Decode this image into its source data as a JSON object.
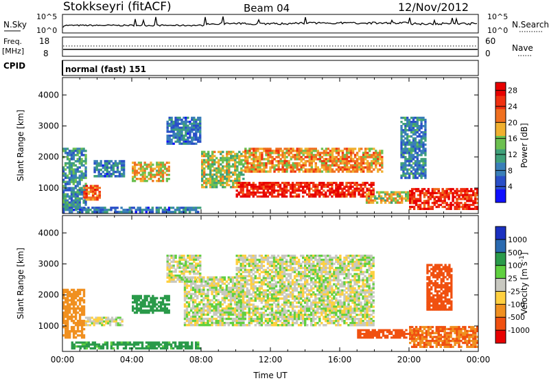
{
  "header": {
    "station": "Stokkseyri (fitACF)",
    "beam": "Beam 04",
    "date": "12/Nov/2012"
  },
  "strip_sky": {
    "left_label": "N.Sky",
    "left_ticks": [
      "10^5",
      "10^0"
    ],
    "right_ticks": [
      "10^5",
      "10^0"
    ],
    "right_label": "N.Search"
  },
  "strip_freq": {
    "left_label_1": "Freq.",
    "left_label_2": "[MHz]",
    "left_ticks": [
      "18",
      "8"
    ],
    "right_ticks": [
      "60",
      "0"
    ],
    "right_label": "Nave"
  },
  "strip_cpid": {
    "label": "CPID",
    "text": "normal (fast) 151"
  },
  "colors": {
    "power": [
      "#1010ff",
      "#2a4fc8",
      "#3a7fb8",
      "#3fa07a",
      "#6cc050",
      "#f0b030",
      "#f07020",
      "#f03010",
      "#e80000"
    ],
    "velocity": [
      "#e80000",
      "#f05010",
      "#f09020",
      "#ffd040",
      "#c8c8c0",
      "#60d040",
      "#2a9a4a",
      "#2a6ab0",
      "#1a30c0"
    ]
  },
  "chart_data": [
    {
      "type": "heatmap",
      "title": "",
      "xlabel": "",
      "ylabel": "Slant Range [km]",
      "x_ticks": [
        "00:00",
        "04:00",
        "08:00",
        "12:00",
        "16:00",
        "20:00",
        "00:00"
      ],
      "x_range_hours": [
        0,
        24
      ],
      "ylim": [
        180,
        4560
      ],
      "y_ticks": [
        1000,
        2000,
        3000,
        4000
      ],
      "colorbar": {
        "label": "Power [dB]",
        "ticks": [
          4,
          8,
          12,
          16,
          20,
          24,
          28
        ],
        "range": [
          0,
          30
        ]
      },
      "regions": [
        {
          "t": [
            0.0,
            1.4
          ],
          "r": [
            300,
            2300
          ],
          "value": 10
        },
        {
          "t": [
            1.2,
            2.2
          ],
          "r": [
            600,
            1100
          ],
          "value": 22
        },
        {
          "t": [
            1.8,
            3.6
          ],
          "r": [
            1350,
            1900
          ],
          "value": 8
        },
        {
          "t": [
            4.0,
            6.2
          ],
          "r": [
            1200,
            1850
          ],
          "value": 18
        },
        {
          "t": [
            6.0,
            8.0
          ],
          "r": [
            2400,
            3300
          ],
          "value": 8
        },
        {
          "t": [
            8.0,
            10.5
          ],
          "r": [
            1000,
            2200
          ],
          "value": 16
        },
        {
          "t": [
            10.0,
            18.0
          ],
          "r": [
            700,
            1200
          ],
          "value": 27
        },
        {
          "t": [
            10.5,
            18.5
          ],
          "r": [
            1500,
            2300
          ],
          "value": 20
        },
        {
          "t": [
            17.5,
            20.0
          ],
          "r": [
            500,
            900
          ],
          "value": 17
        },
        {
          "t": [
            19.5,
            21.0
          ],
          "r": [
            1300,
            3300
          ],
          "value": 9
        },
        {
          "t": [
            20.0,
            24.0
          ],
          "r": [
            300,
            1000
          ],
          "value": 26
        },
        {
          "t": [
            0.0,
            8.0
          ],
          "r": [
            200,
            400
          ],
          "value": 8
        }
      ]
    },
    {
      "type": "heatmap",
      "title": "",
      "xlabel": "Time UT",
      "ylabel": "Slant Range [km]",
      "x_ticks": [
        "00:00",
        "04:00",
        "08:00",
        "12:00",
        "16:00",
        "20:00",
        "00:00"
      ],
      "x_range_hours": [
        0,
        24
      ],
      "ylim": [
        180,
        4560
      ],
      "y_ticks": [
        1000,
        2000,
        3000,
        4000
      ],
      "colorbar": {
        "label": "Velocity [m s^-1]",
        "ticks": [
          1000,
          500,
          100,
          25,
          -25,
          -100,
          -500,
          -1000
        ]
      },
      "regions": [
        {
          "t": [
            0.0,
            1.3
          ],
          "r": [
            600,
            2200
          ],
          "value": -400
        },
        {
          "t": [
            1.3,
            3.5
          ],
          "r": [
            1000,
            1300
          ],
          "value": 0
        },
        {
          "t": [
            0.5,
            8.0
          ],
          "r": [
            250,
            500
          ],
          "value": 150
        },
        {
          "t": [
            4.0,
            6.2
          ],
          "r": [
            1400,
            2000
          ],
          "value": 200
        },
        {
          "t": [
            6.0,
            8.0
          ],
          "r": [
            2400,
            3300
          ],
          "value": 0
        },
        {
          "t": [
            7.0,
            10.5
          ],
          "r": [
            1000,
            2600
          ],
          "value": 0
        },
        {
          "t": [
            10.0,
            18.0
          ],
          "r": [
            1000,
            3300
          ],
          "value": 0
        },
        {
          "t": [
            17.0,
            20.5
          ],
          "r": [
            600,
            900
          ],
          "value": -600
        },
        {
          "t": [
            20.0,
            24.0
          ],
          "r": [
            300,
            1000
          ],
          "value": -500
        },
        {
          "t": [
            21.0,
            22.5
          ],
          "r": [
            1500,
            3000
          ],
          "value": -600
        }
      ]
    }
  ]
}
